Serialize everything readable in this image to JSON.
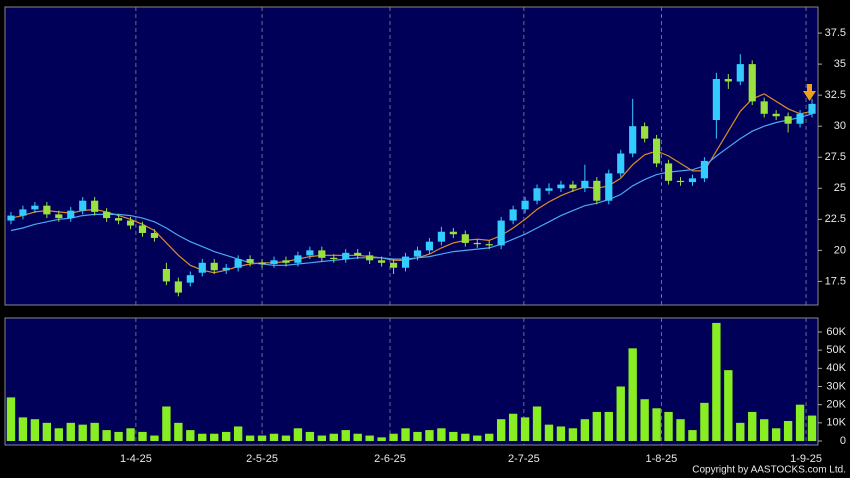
{
  "chart_data": {
    "type": "candlestick",
    "up_color": "#33ccff",
    "down_color": "#99e040",
    "ylim": [
      15.6,
      39.6
    ],
    "yticks": [
      17.5,
      20,
      22.5,
      25,
      27.5,
      30,
      32.5,
      35,
      37.5
    ],
    "xlim": [
      0,
      68
    ],
    "xticks": [
      {
        "value": 10.95,
        "label": "1-4-25"
      },
      {
        "value": 21.5,
        "label": "2-5-25"
      },
      {
        "value": 32.2,
        "label": "2-6-25"
      },
      {
        "value": 43.4,
        "label": "2-7-25"
      },
      {
        "value": 54.9,
        "label": "1-8-25"
      },
      {
        "value": 67.0,
        "label": "1-9-25"
      }
    ],
    "grid": true,
    "ohlc": [
      [
        22.4,
        23.1,
        22.1,
        22.8
      ],
      [
        22.8,
        23.6,
        22.5,
        23.3
      ],
      [
        23.3,
        23.9,
        23.0,
        23.6
      ],
      [
        23.6,
        23.9,
        22.6,
        22.9
      ],
      [
        22.9,
        23.2,
        22.3,
        22.6
      ],
      [
        22.6,
        23.5,
        22.3,
        23.2
      ],
      [
        23.2,
        24.3,
        22.9,
        24.0
      ],
      [
        24.0,
        24.3,
        22.8,
        23.1
      ],
      [
        23.1,
        23.4,
        22.3,
        22.6
      ],
      [
        22.6,
        22.9,
        22.1,
        22.4
      ],
      [
        22.4,
        22.7,
        21.7,
        22.0
      ],
      [
        22.0,
        22.3,
        21.1,
        21.4
      ],
      [
        21.4,
        21.7,
        20.7,
        21.0
      ],
      [
        18.5,
        19.0,
        17.2,
        17.5
      ],
      [
        17.5,
        17.8,
        16.3,
        16.6
      ],
      [
        17.4,
        18.3,
        17.1,
        18.0
      ],
      [
        18.2,
        19.3,
        17.9,
        19.0
      ],
      [
        19.0,
        19.3,
        18.1,
        18.4
      ],
      [
        18.4,
        18.9,
        18.1,
        18.6
      ],
      [
        18.6,
        19.6,
        18.3,
        19.3
      ],
      [
        19.3,
        19.6,
        18.7,
        19.0
      ],
      [
        19.0,
        19.3,
        18.6,
        18.9
      ],
      [
        18.9,
        19.5,
        18.6,
        19.2
      ],
      [
        19.2,
        19.5,
        18.7,
        19.0
      ],
      [
        19.0,
        19.9,
        18.7,
        19.6
      ],
      [
        19.6,
        20.3,
        19.3,
        20.0
      ],
      [
        20.0,
        20.3,
        19.1,
        19.4
      ],
      [
        19.4,
        19.7,
        19.0,
        19.3
      ],
      [
        19.3,
        20.1,
        19.0,
        19.8
      ],
      [
        19.8,
        20.1,
        19.3,
        19.6
      ],
      [
        19.6,
        19.9,
        18.9,
        19.2
      ],
      [
        19.2,
        19.5,
        18.7,
        19.0
      ],
      [
        19.0,
        19.3,
        18.1,
        18.6
      ],
      [
        18.6,
        19.8,
        18.3,
        19.5
      ],
      [
        19.5,
        20.3,
        19.2,
        20.0
      ],
      [
        20.0,
        21.0,
        19.7,
        20.7
      ],
      [
        20.7,
        21.9,
        20.4,
        21.5
      ],
      [
        21.5,
        21.8,
        21.0,
        21.3
      ],
      [
        21.3,
        21.6,
        20.3,
        20.6
      ],
      [
        20.6,
        20.9,
        20.2,
        20.5
      ],
      [
        20.5,
        20.8,
        20.1,
        20.4
      ],
      [
        20.4,
        22.7,
        20.1,
        22.4
      ],
      [
        22.4,
        23.6,
        22.1,
        23.3
      ],
      [
        23.3,
        24.3,
        23.0,
        24.0
      ],
      [
        24.0,
        25.3,
        23.7,
        25.0
      ],
      [
        24.8,
        25.4,
        24.5,
        25.0
      ],
      [
        25.0,
        25.6,
        24.7,
        25.3
      ],
      [
        25.3,
        25.6,
        24.7,
        25.0
      ],
      [
        25.0,
        26.9,
        24.7,
        25.6
      ],
      [
        25.6,
        25.9,
        23.7,
        24.0
      ],
      [
        24.0,
        26.5,
        23.7,
        26.2
      ],
      [
        26.2,
        28.1,
        25.9,
        27.8
      ],
      [
        27.8,
        32.2,
        27.5,
        30.0
      ],
      [
        30.0,
        30.3,
        28.7,
        29.0
      ],
      [
        29.0,
        29.3,
        26.7,
        27.0
      ],
      [
        27.0,
        27.3,
        25.3,
        25.6
      ],
      [
        25.6,
        25.9,
        25.2,
        25.5
      ],
      [
        25.5,
        26.1,
        25.2,
        25.8
      ],
      [
        25.8,
        27.5,
        25.5,
        27.2
      ],
      [
        30.5,
        34.3,
        29.0,
        33.8
      ],
      [
        33.8,
        34.2,
        33.0,
        33.6
      ],
      [
        33.6,
        35.8,
        33.3,
        35.0
      ],
      [
        35.0,
        35.3,
        31.7,
        32.0
      ],
      [
        32.0,
        32.3,
        30.7,
        31.0
      ],
      [
        31.0,
        31.3,
        30.5,
        30.8
      ],
      [
        30.8,
        31.1,
        29.5,
        30.2
      ],
      [
        30.2,
        31.3,
        29.9,
        31.0
      ],
      [
        31.0,
        32.2,
        30.7,
        31.8
      ]
    ],
    "ma": [
      {
        "color": "#e08a2a",
        "values": [
          22.6,
          22.8,
          23.1,
          23.2,
          23.1,
          23.0,
          23.2,
          23.3,
          23.1,
          22.8,
          22.5,
          22.1,
          21.6,
          20.6,
          19.6,
          18.8,
          18.4,
          18.2,
          18.4,
          18.7,
          18.9,
          19.0,
          19.0,
          19.1,
          19.3,
          19.5,
          19.6,
          19.6,
          19.6,
          19.6,
          19.5,
          19.4,
          19.2,
          19.2,
          19.4,
          19.7,
          20.2,
          20.6,
          20.8,
          20.9,
          20.8,
          21.2,
          21.8,
          22.5,
          23.3,
          23.9,
          24.4,
          24.8,
          25.1,
          25.0,
          25.2,
          25.8,
          26.9,
          27.7,
          28.0,
          27.6,
          27.0,
          26.4,
          26.4,
          28.0,
          29.6,
          31.2,
          32.2,
          32.6,
          32.0,
          31.4,
          31.0,
          31.2
        ]
      },
      {
        "color": "#4aa8f0",
        "values": [
          21.6,
          21.8,
          22.1,
          22.3,
          22.5,
          22.6,
          22.8,
          22.9,
          22.9,
          22.9,
          22.8,
          22.6,
          22.3,
          21.8,
          21.2,
          20.7,
          20.3,
          19.9,
          19.6,
          19.3,
          19.0,
          18.9,
          18.8,
          18.8,
          18.9,
          19.0,
          19.1,
          19.2,
          19.3,
          19.4,
          19.4,
          19.4,
          19.3,
          19.3,
          19.4,
          19.5,
          19.7,
          19.9,
          20.0,
          20.1,
          20.2,
          20.5,
          20.9,
          21.3,
          21.8,
          22.3,
          22.8,
          23.2,
          23.6,
          23.8,
          24.1,
          24.5,
          25.2,
          25.7,
          26.1,
          26.3,
          26.4,
          26.5,
          26.8,
          27.6,
          28.3,
          29.0,
          29.6,
          30.0,
          30.3,
          30.5,
          30.7,
          31.0
        ]
      }
    ],
    "volume": {
      "color": "#88ee22",
      "ylim": [
        -2200,
        67700
      ],
      "yticks": [
        0,
        {
          "value": 10000,
          "label": "10K"
        },
        {
          "value": 20000,
          "label": "20K"
        },
        {
          "value": 30000,
          "label": "30K"
        },
        {
          "value": 40000,
          "label": "40K"
        },
        {
          "value": 50000,
          "label": "50K"
        },
        {
          "value": 60000,
          "label": "60K"
        }
      ],
      "values": [
        24000,
        13000,
        12000,
        10000,
        7000,
        10000,
        9000,
        10000,
        6000,
        5000,
        7000,
        5000,
        3000,
        19000,
        10000,
        6000,
        4000,
        4000,
        5000,
        8000,
        3000,
        3000,
        4000,
        3000,
        7000,
        5000,
        3000,
        4000,
        6000,
        4000,
        3000,
        2000,
        4000,
        7000,
        5000,
        6000,
        7000,
        5000,
        4000,
        3000,
        4000,
        12000,
        15000,
        13000,
        19000,
        9000,
        8000,
        7000,
        12000,
        16000,
        16000,
        30000,
        51000,
        23000,
        18000,
        16000,
        12000,
        6000,
        21000,
        65000,
        39000,
        10000,
        16000,
        12000,
        7000,
        11000,
        20000,
        14000
      ]
    }
  },
  "footer": {
    "copyright": "Copyright by AASTOCKS.com Ltd."
  }
}
